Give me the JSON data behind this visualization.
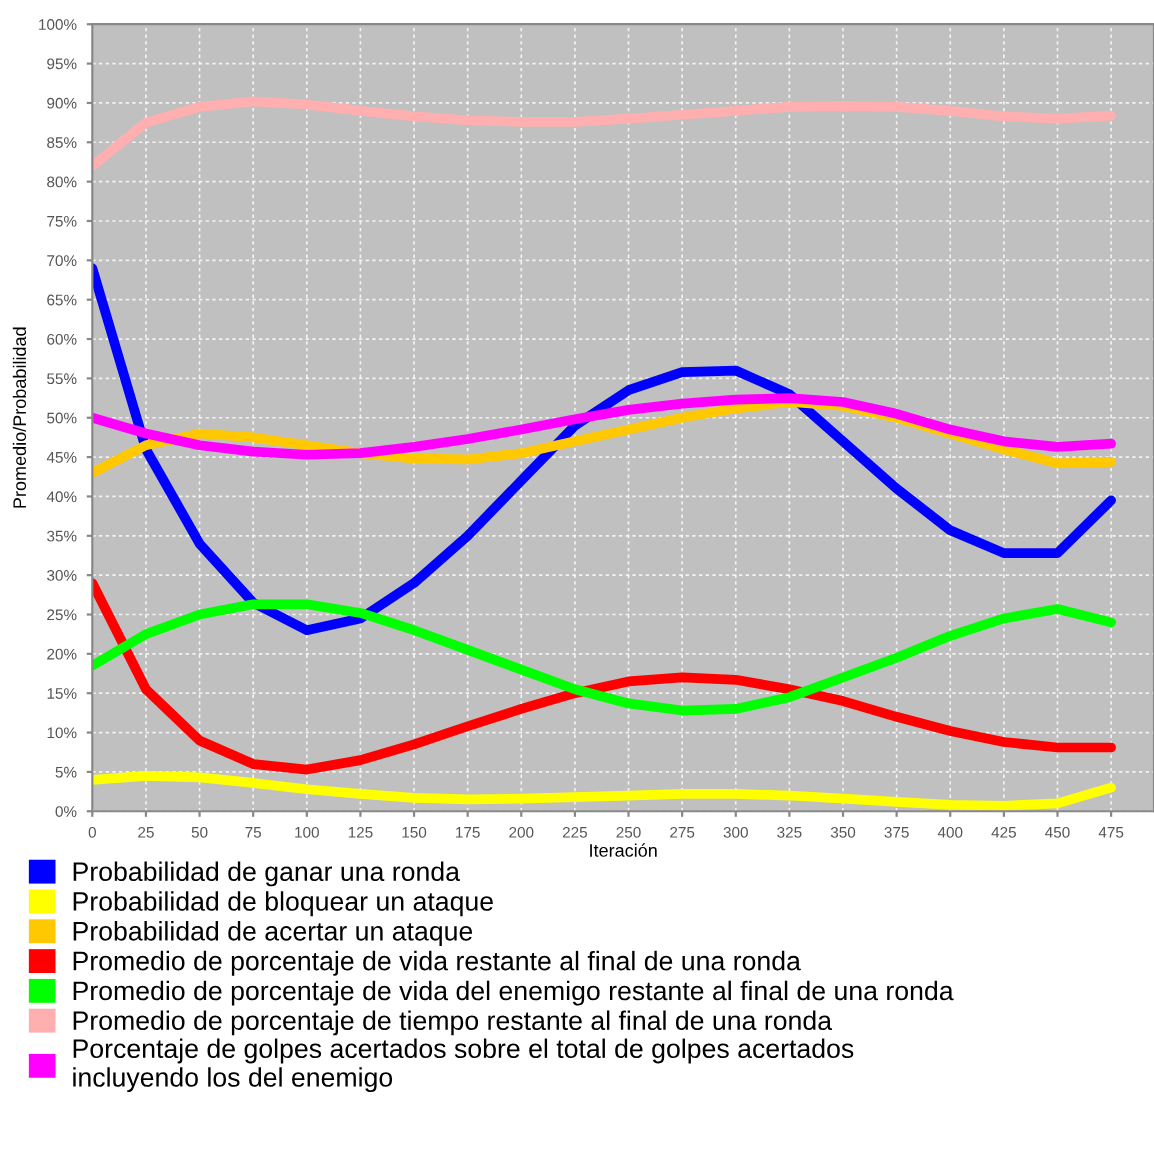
{
  "chart_data": {
    "type": "line",
    "xlabel": "Iteración",
    "ylabel": "Promedio/Probabilidad",
    "x": [
      0,
      25,
      50,
      75,
      100,
      125,
      150,
      175,
      200,
      225,
      250,
      275,
      300,
      325,
      350,
      375,
      400,
      425,
      450,
      475
    ],
    "series": [
      {
        "name": "Probabilidad de ganar una ronda",
        "color": "#0000ff",
        "values": [
          69,
          46,
          34,
          26.5,
          23,
          24.5,
          29,
          35,
          42,
          49,
          53.5,
          55.8,
          56,
          53,
          47,
          41,
          35.7,
          32.8,
          32.8,
          39.5
        ]
      },
      {
        "name": "Probabilidad de bloquear un ataque",
        "color": "#ffff00",
        "values": [
          4,
          4.5,
          4.3,
          3.6,
          2.8,
          2.2,
          1.7,
          1.5,
          1.6,
          1.8,
          2,
          2.2,
          2.2,
          2,
          1.6,
          1.2,
          0.8,
          0.7,
          1,
          3
        ]
      },
      {
        "name": "Probabilidad de acertar un ataque",
        "color": "#ffc800",
        "values": [
          43,
          46.5,
          48,
          47.5,
          46.5,
          45.5,
          44.8,
          44.7,
          45.5,
          47,
          48.5,
          50,
          51.2,
          52,
          51.5,
          50,
          48,
          46,
          44.2,
          44.4
        ]
      },
      {
        "name": "Promedio de porcentaje de vida restante al final de una ronda",
        "color": "#ff0000",
        "values": [
          29,
          15.5,
          9,
          6,
          5.3,
          6.5,
          8.5,
          10.8,
          13,
          15,
          16.5,
          17,
          16.7,
          15.5,
          14,
          12,
          10.2,
          8.8,
          8.1,
          8.1
        ]
      },
      {
        "name": "Promedio de porcentaje de vida del enemigo restante al final de una ronda",
        "color": "#00ff00",
        "values": [
          18.5,
          22.5,
          25,
          26.3,
          26.3,
          25.2,
          23,
          20.5,
          18,
          15.5,
          13.7,
          12.8,
          13,
          14.5,
          17,
          19.5,
          22.3,
          24.5,
          25.7,
          24
        ]
      },
      {
        "name": "Promedio de porcentaje de tiempo restante al final de una ronda",
        "color": "#ffafaf",
        "values": [
          82,
          87.5,
          89.5,
          90.2,
          89.8,
          89,
          88.3,
          87.8,
          87.6,
          87.6,
          88,
          88.5,
          89,
          89.5,
          89.6,
          89.5,
          89,
          88.3,
          88,
          88.4
        ]
      },
      {
        "name": "Porcentaje de golpes acertados sobre el total de golpes acertados\nincluyendo los del enemigo",
        "color": "#ff00ff",
        "values": [
          50,
          48,
          46.5,
          45.7,
          45.3,
          45.5,
          46.3,
          47.3,
          48.5,
          49.8,
          51,
          51.8,
          52.3,
          52.5,
          52,
          50.5,
          48.5,
          47,
          46.3,
          46.7
        ]
      }
    ],
    "xlim": [
      0,
      495
    ],
    "ylim": [
      0,
      100
    ],
    "xticks": [
      0,
      25,
      50,
      75,
      100,
      125,
      150,
      175,
      200,
      225,
      250,
      275,
      300,
      325,
      350,
      375,
      400,
      425,
      450,
      475
    ],
    "yticks": [
      {
        "value": 0,
        "label": "0%"
      },
      {
        "value": 5,
        "label": "5%"
      },
      {
        "value": 10,
        "label": "10%"
      },
      {
        "value": 15,
        "label": "15%"
      },
      {
        "value": 20,
        "label": "20%"
      },
      {
        "value": 25,
        "label": "25%"
      },
      {
        "value": 30,
        "label": "30%"
      },
      {
        "value": 35,
        "label": "35%"
      },
      {
        "value": 40,
        "label": "40%"
      },
      {
        "value": 45,
        "label": "45%"
      },
      {
        "value": 50,
        "label": "50%"
      },
      {
        "value": 55,
        "label": "55%"
      },
      {
        "value": 60,
        "label": "60%"
      },
      {
        "value": 65,
        "label": "65%"
      },
      {
        "value": 70,
        "label": "70%"
      },
      {
        "value": 75,
        "label": "75%"
      },
      {
        "value": 80,
        "label": "80%"
      },
      {
        "value": 85,
        "label": "85%"
      },
      {
        "value": 90,
        "label": "90%"
      },
      {
        "value": 95,
        "label": "95%"
      },
      {
        "value": 100,
        "label": "100%"
      }
    ],
    "grid": true,
    "legend": "bottom",
    "marker": "none",
    "line_style": "solid"
  }
}
